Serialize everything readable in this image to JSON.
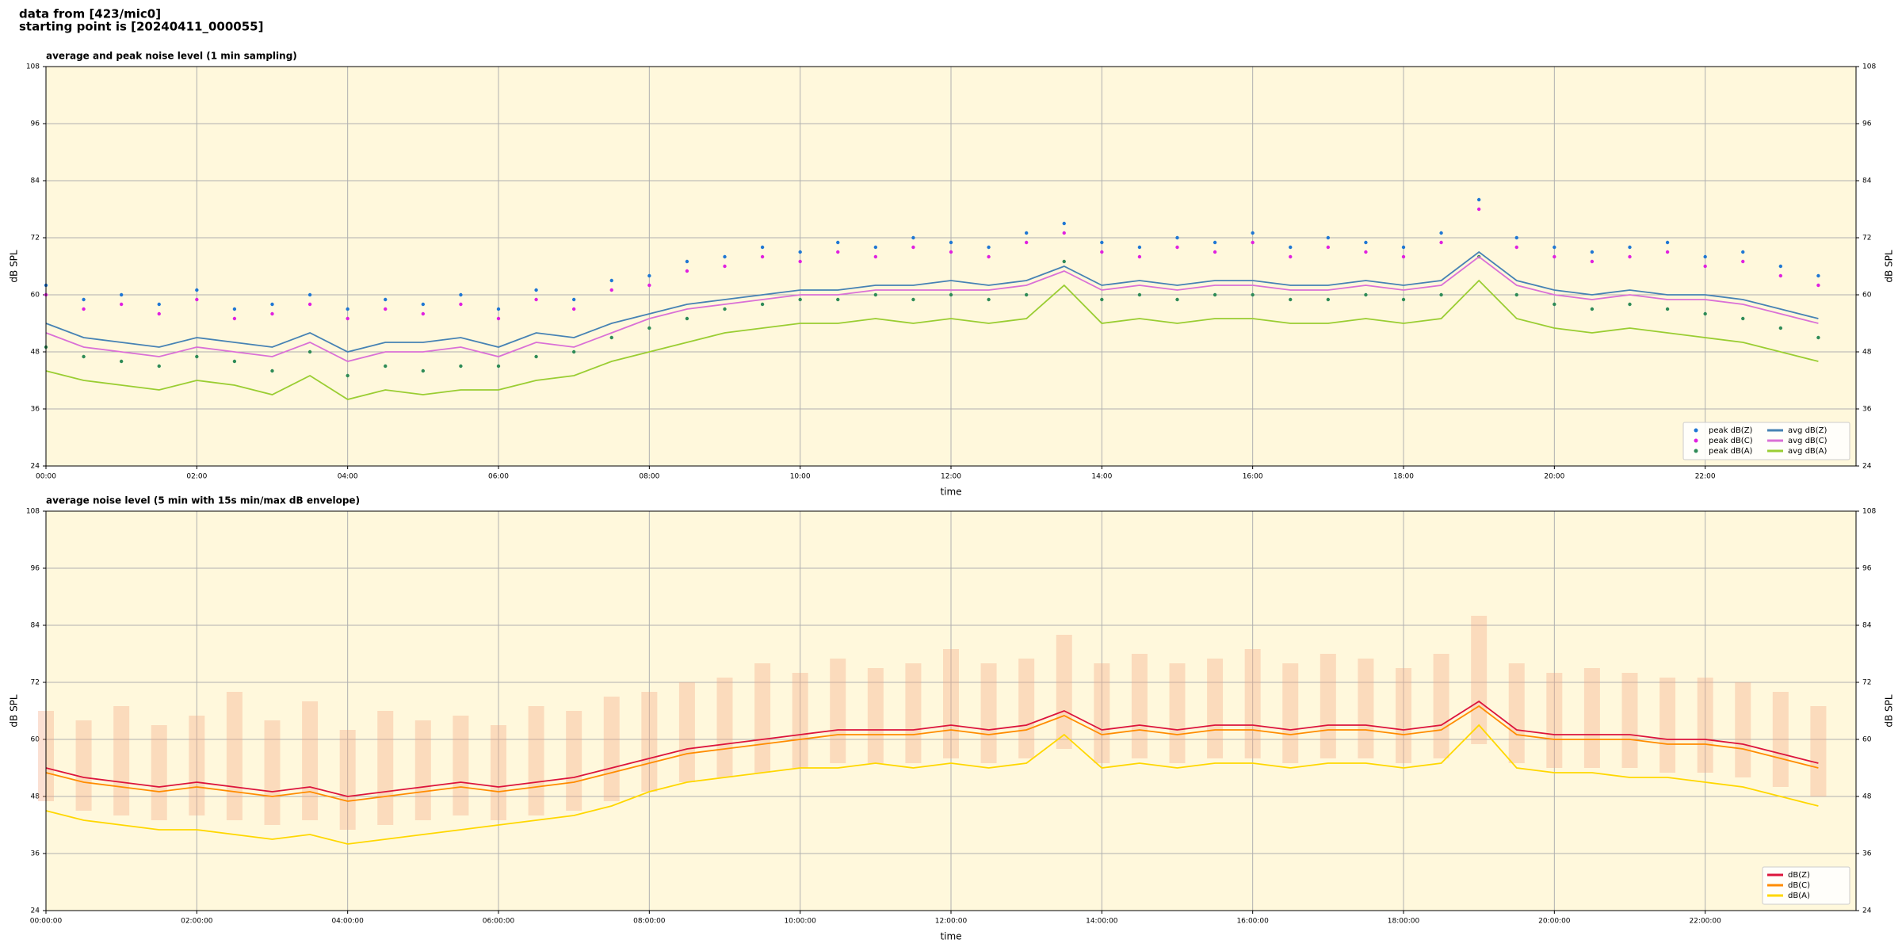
{
  "header": {
    "lines": [
      "data from [423/mic0]",
      "starting point is [20240411_000055]"
    ]
  },
  "chart_data": [
    {
      "type": "line",
      "title": "average and peak noise level (1 min sampling)",
      "x_label": "time",
      "y_label": "dB SPL",
      "background": "#fff8dc",
      "grid": true,
      "legend": "lower right",
      "xlim": [
        0,
        24
      ],
      "ylim": [
        24,
        108
      ],
      "yticks": [
        24,
        36,
        48,
        60,
        72,
        84,
        96,
        108
      ],
      "xticks": [
        {
          "value": 0,
          "label": "00:00"
        },
        {
          "value": 2,
          "label": "02:00"
        },
        {
          "value": 4,
          "label": "04:00"
        },
        {
          "value": 6,
          "label": "06:00"
        },
        {
          "value": 8,
          "label": "08:00"
        },
        {
          "value": 10,
          "label": "10:00"
        },
        {
          "value": 12,
          "label": "12:00"
        },
        {
          "value": 14,
          "label": "14:00"
        },
        {
          "value": 16,
          "label": "16:00"
        },
        {
          "value": 18,
          "label": "18:00"
        },
        {
          "value": 20,
          "label": "20:00"
        },
        {
          "value": 22,
          "label": "22:00"
        }
      ],
      "x": [
        0,
        0.5,
        1,
        1.5,
        2,
        2.5,
        3,
        3.5,
        4,
        4.5,
        5,
        5.5,
        6,
        6.5,
        7,
        7.5,
        8,
        8.5,
        9,
        9.5,
        10,
        10.5,
        11,
        11.5,
        12,
        12.5,
        13,
        13.5,
        14,
        14.5,
        15,
        15.5,
        16,
        16.5,
        17,
        17.5,
        18,
        18.5,
        19,
        19.5,
        20,
        20.5,
        21,
        21.5,
        22,
        22.5,
        23,
        23.5
      ],
      "series": [
        {
          "name": "peak dB(Z)",
          "type": "scatter",
          "color": "#1f77d4",
          "values": [
            62,
            59,
            60,
            58,
            61,
            57,
            58,
            60,
            57,
            59,
            58,
            60,
            57,
            61,
            59,
            63,
            64,
            67,
            68,
            70,
            69,
            71,
            70,
            72,
            71,
            70,
            73,
            75,
            71,
            70,
            72,
            71,
            73,
            70,
            72,
            71,
            70,
            73,
            80,
            72,
            70,
            69,
            70,
            71,
            68,
            69,
            66,
            64
          ]
        },
        {
          "name": "peak dB(C)",
          "type": "scatter",
          "color": "#e020e0",
          "values": [
            60,
            57,
            58,
            56,
            59,
            55,
            56,
            58,
            55,
            57,
            56,
            58,
            55,
            59,
            57,
            61,
            62,
            65,
            66,
            68,
            67,
            69,
            68,
            70,
            69,
            68,
            71,
            73,
            69,
            68,
            70,
            69,
            71,
            68,
            70,
            69,
            68,
            71,
            78,
            70,
            68,
            67,
            68,
            69,
            66,
            67,
            64,
            62
          ]
        },
        {
          "name": "peak dB(A)",
          "type": "scatter",
          "color": "#2e8b57",
          "values": [
            49,
            47,
            46,
            45,
            47,
            46,
            44,
            48,
            43,
            45,
            44,
            45,
            45,
            47,
            48,
            51,
            53,
            55,
            57,
            58,
            59,
            59,
            60,
            59,
            60,
            59,
            60,
            67,
            59,
            60,
            59,
            60,
            60,
            59,
            59,
            60,
            59,
            60,
            68,
            60,
            58,
            57,
            58,
            57,
            56,
            55,
            53,
            51
          ]
        },
        {
          "name": "avg dB(Z)",
          "type": "line",
          "color": "#4682b4",
          "values": [
            54,
            51,
            50,
            49,
            51,
            50,
            49,
            52,
            48,
            50,
            50,
            51,
            49,
            52,
            51,
            54,
            56,
            58,
            59,
            60,
            61,
            61,
            62,
            62,
            63,
            62,
            63,
            66,
            62,
            63,
            62,
            63,
            63,
            62,
            62,
            63,
            62,
            63,
            69,
            63,
            61,
            60,
            61,
            60,
            60,
            59,
            57,
            55
          ]
        },
        {
          "name": "avg dB(C)",
          "type": "line",
          "color": "#da70d6",
          "values": [
            52,
            49,
            48,
            47,
            49,
            48,
            47,
            50,
            46,
            48,
            48,
            49,
            47,
            50,
            49,
            52,
            55,
            57,
            58,
            59,
            60,
            60,
            61,
            61,
            61,
            61,
            62,
            65,
            61,
            62,
            61,
            62,
            62,
            61,
            61,
            62,
            61,
            62,
            68,
            62,
            60,
            59,
            60,
            59,
            59,
            58,
            56,
            54
          ]
        },
        {
          "name": "avg dB(A)",
          "type": "line",
          "color": "#9acd32",
          "values": [
            44,
            42,
            41,
            40,
            42,
            41,
            39,
            43,
            38,
            40,
            39,
            40,
            40,
            42,
            43,
            46,
            48,
            50,
            52,
            53,
            54,
            54,
            55,
            54,
            55,
            54,
            55,
            62,
            54,
            55,
            54,
            55,
            55,
            54,
            54,
            55,
            54,
            55,
            63,
            55,
            53,
            52,
            53,
            52,
            51,
            50,
            48,
            46
          ]
        }
      ]
    },
    {
      "type": "line",
      "title": "average noise level (5 min with 15s min/max dB envelope)",
      "x_label": "time",
      "y_label": "dB SPL",
      "background": "#fff8dc",
      "grid": true,
      "legend": "lower right",
      "xlim": [
        0,
        24
      ],
      "ylim": [
        24,
        108
      ],
      "yticks": [
        24,
        36,
        48,
        60,
        72,
        84,
        96,
        108
      ],
      "xticks": [
        {
          "value": 0,
          "label": "00:00:00"
        },
        {
          "value": 2,
          "label": "02:00:00"
        },
        {
          "value": 4,
          "label": "04:00:00"
        },
        {
          "value": 6,
          "label": "06:00:00"
        },
        {
          "value": 8,
          "label": "08:00:00"
        },
        {
          "value": 10,
          "label": "10:00:00"
        },
        {
          "value": 12,
          "label": "12:00:00"
        },
        {
          "value": 14,
          "label": "14:00:00"
        },
        {
          "value": 16,
          "label": "16:00:00"
        },
        {
          "value": 18,
          "label": "18:00:00"
        },
        {
          "value": 20,
          "label": "20:00:00"
        },
        {
          "value": 22,
          "label": "22:00:00"
        }
      ],
      "x": [
        0,
        0.5,
        1,
        1.5,
        2,
        2.5,
        3,
        3.5,
        4,
        4.5,
        5,
        5.5,
        6,
        6.5,
        7,
        7.5,
        8,
        8.5,
        9,
        9.5,
        10,
        10.5,
        11,
        11.5,
        12,
        12.5,
        13,
        13.5,
        14,
        14.5,
        15,
        15.5,
        16,
        16.5,
        17,
        17.5,
        18,
        18.5,
        19,
        19.5,
        20,
        20.5,
        21,
        21.5,
        22,
        22.5,
        23,
        23.5
      ],
      "envelope": {
        "color": "#f4a582",
        "min": [
          47,
          45,
          44,
          43,
          44,
          43,
          42,
          43,
          41,
          42,
          43,
          44,
          43,
          44,
          45,
          47,
          49,
          51,
          52,
          53,
          54,
          55,
          55,
          55,
          56,
          55,
          56,
          58,
          55,
          56,
          55,
          56,
          56,
          55,
          56,
          56,
          55,
          56,
          59,
          55,
          54,
          54,
          54,
          53,
          53,
          52,
          50,
          48
        ],
        "max": [
          66,
          64,
          67,
          63,
          65,
          70,
          64,
          68,
          62,
          66,
          64,
          65,
          63,
          67,
          66,
          69,
          70,
          72,
          73,
          76,
          74,
          77,
          75,
          76,
          79,
          76,
          77,
          82,
          76,
          78,
          76,
          77,
          79,
          76,
          78,
          77,
          75,
          78,
          86,
          76,
          74,
          75,
          74,
          73,
          73,
          72,
          70,
          67
        ]
      },
      "series": [
        {
          "name": "dB(Z)",
          "type": "line",
          "color": "#dc143c",
          "values": [
            54,
            52,
            51,
            50,
            51,
            50,
            49,
            50,
            48,
            49,
            50,
            51,
            50,
            51,
            52,
            54,
            56,
            58,
            59,
            60,
            61,
            62,
            62,
            62,
            63,
            62,
            63,
            66,
            62,
            63,
            62,
            63,
            63,
            62,
            63,
            63,
            62,
            63,
            68,
            62,
            61,
            61,
            61,
            60,
            60,
            59,
            57,
            55
          ]
        },
        {
          "name": "dB(C)",
          "type": "line",
          "color": "#ff8c00",
          "values": [
            53,
            51,
            50,
            49,
            50,
            49,
            48,
            49,
            47,
            48,
            49,
            50,
            49,
            50,
            51,
            53,
            55,
            57,
            58,
            59,
            60,
            61,
            61,
            61,
            62,
            61,
            62,
            65,
            61,
            62,
            61,
            62,
            62,
            61,
            62,
            62,
            61,
            62,
            67,
            61,
            60,
            60,
            60,
            59,
            59,
            58,
            56,
            54
          ]
        },
        {
          "name": "dB(A)",
          "type": "line",
          "color": "#ffd700",
          "values": [
            45,
            43,
            42,
            41,
            41,
            40,
            39,
            40,
            38,
            39,
            40,
            41,
            42,
            43,
            44,
            46,
            49,
            51,
            52,
            53,
            54,
            54,
            55,
            54,
            55,
            54,
            55,
            61,
            54,
            55,
            54,
            55,
            55,
            54,
            55,
            55,
            54,
            55,
            63,
            54,
            53,
            53,
            52,
            52,
            51,
            50,
            48,
            46
          ]
        }
      ]
    }
  ]
}
